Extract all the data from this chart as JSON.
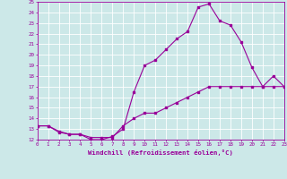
{
  "xlabel": "Windchill (Refroidissement éolien,°C)",
  "bg_color": "#cce8e8",
  "line_color": "#990099",
  "grid_color": "#ffffff",
  "xmin": 0,
  "xmax": 23,
  "ymin": 12,
  "ymax": 25,
  "series1_x": [
    0,
    1,
    2,
    3,
    4,
    5,
    6,
    7,
    8,
    9,
    10,
    11,
    12,
    13,
    14,
    15,
    16,
    17,
    18,
    19,
    20,
    21,
    22,
    23
  ],
  "series1_y": [
    13.3,
    13.3,
    12.7,
    12.5,
    12.5,
    12.0,
    12.0,
    12.3,
    13.0,
    16.5,
    19.0,
    19.5,
    20.5,
    21.5,
    22.2,
    24.5,
    24.8,
    23.2,
    22.8,
    21.2,
    18.8,
    17.0,
    18.0,
    17.0
  ],
  "series2_x": [
    0,
    1,
    2,
    3,
    4,
    5,
    6,
    7,
    8,
    9,
    10,
    11,
    12,
    13,
    14,
    15,
    16,
    17,
    18,
    19,
    20,
    21,
    22,
    23
  ],
  "series2_y": [
    13.3,
    13.3,
    12.8,
    12.5,
    12.5,
    12.2,
    12.2,
    12.2,
    13.3,
    14.0,
    14.5,
    14.5,
    15.0,
    15.5,
    16.0,
    16.5,
    17.0,
    17.0,
    17.0,
    17.0,
    17.0,
    17.0,
    17.0,
    17.0
  ],
  "xtick_labels": [
    "0",
    "1",
    "2",
    "3",
    "4",
    "5",
    "6",
    "7",
    "8",
    "9",
    "10",
    "11",
    "12",
    "13",
    "14",
    "15",
    "16",
    "17",
    "18",
    "19",
    "20",
    "21",
    "22",
    "23"
  ],
  "ytick_labels": [
    "12",
    "13",
    "14",
    "15",
    "16",
    "17",
    "18",
    "19",
    "20",
    "21",
    "22",
    "23",
    "24",
    "25"
  ]
}
